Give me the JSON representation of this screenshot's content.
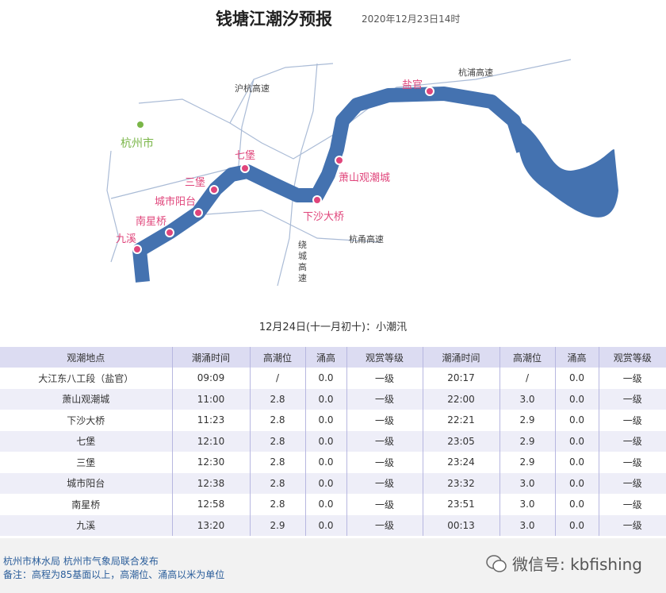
{
  "header": {
    "title": "钱塘江潮汐预报",
    "date": "2020年12月23日14时"
  },
  "map": {
    "river_color": "#4472b0",
    "point_color": "#e0457b",
    "city_color": "#7ab648",
    "city": "杭州市",
    "roads": [
      "沪杭高速",
      "杭浦高速",
      "杭甬高速",
      "绕",
      "城",
      "高",
      "速"
    ],
    "points": [
      "盐官",
      "萧山观潮城",
      "下沙大桥",
      "七堡",
      "三堡",
      "城市阳台",
      "南星桥",
      "九溪"
    ]
  },
  "subtitle": "12月24日(十一月初十)：小潮汛",
  "table": {
    "headers": [
      "观潮地点",
      "潮涌时间",
      "高潮位",
      "涌高",
      "观赏等级",
      "潮涌时间",
      "高潮位",
      "涌高",
      "观赏等级"
    ],
    "rows": [
      [
        "大江东八工段（盐官）",
        "09:09",
        "/",
        "0.0",
        "一级",
        "20:17",
        "/",
        "0.0",
        "一级"
      ],
      [
        "萧山观潮城",
        "11:00",
        "2.8",
        "0.0",
        "一级",
        "22:00",
        "3.0",
        "0.0",
        "一级"
      ],
      [
        "下沙大桥",
        "11:23",
        "2.8",
        "0.0",
        "一级",
        "22:21",
        "2.9",
        "0.0",
        "一级"
      ],
      [
        "七堡",
        "12:10",
        "2.8",
        "0.0",
        "一级",
        "23:05",
        "2.9",
        "0.0",
        "一级"
      ],
      [
        "三堡",
        "12:30",
        "2.8",
        "0.0",
        "一级",
        "23:24",
        "2.9",
        "0.0",
        "一级"
      ],
      [
        "城市阳台",
        "12:38",
        "2.8",
        "0.0",
        "一级",
        "23:32",
        "3.0",
        "0.0",
        "一级"
      ],
      [
        "南星桥",
        "12:58",
        "2.8",
        "0.0",
        "一级",
        "23:51",
        "3.0",
        "0.0",
        "一级"
      ],
      [
        "九溪",
        "13:20",
        "2.9",
        "0.0",
        "一级",
        "00:13",
        "3.0",
        "0.0",
        "一级"
      ]
    ]
  },
  "footer": {
    "publisher": "杭州市林水局 杭州市气象局联合发布",
    "note": "备注：高程为85基面以上，高潮位、涌高以米为单位",
    "wechat": "微信号: kbfishing"
  }
}
